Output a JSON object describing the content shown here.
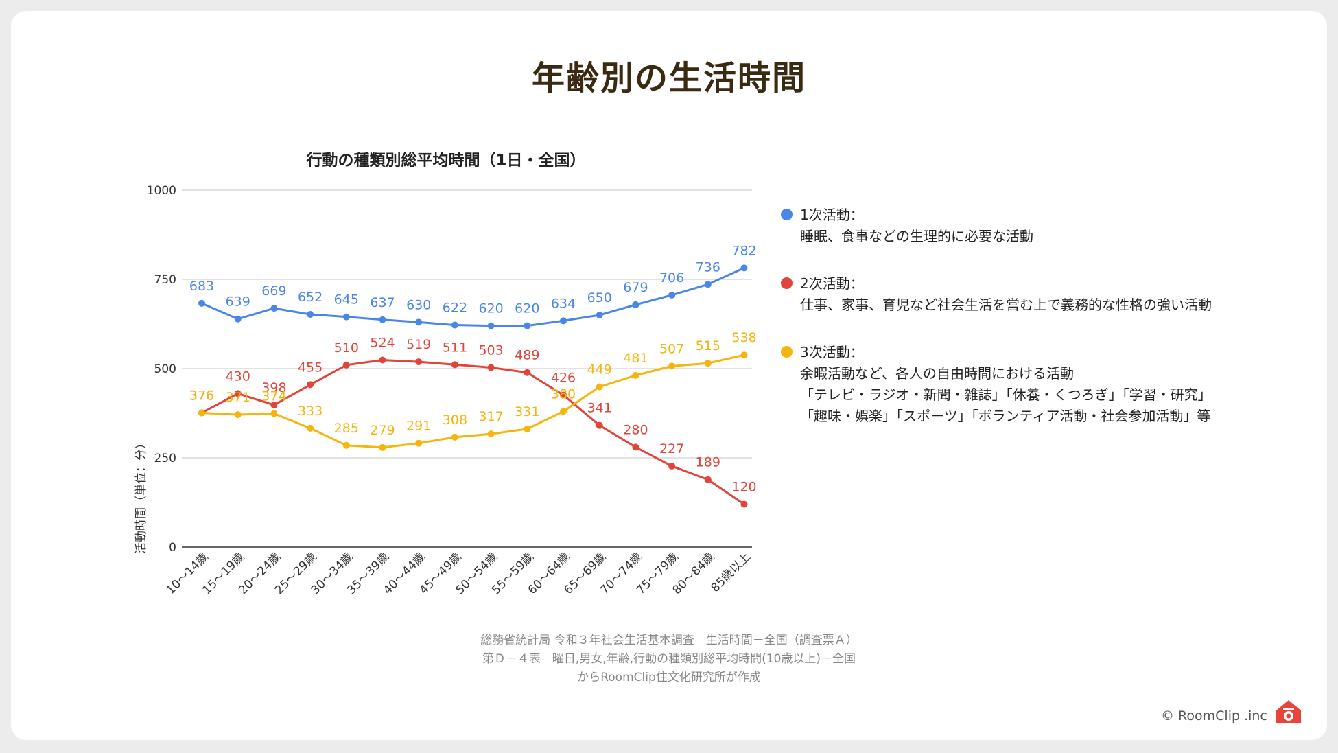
{
  "page": {
    "title": "年齢別の生活時間"
  },
  "chart_data": {
    "type": "line",
    "title": "行動の種類別総平均時間（1日・全国）",
    "ylabel": "活動時間（単位：分）",
    "xlabel": "",
    "ylim": [
      0,
      1000
    ],
    "yticks": [
      0,
      250,
      500,
      750,
      1000
    ],
    "grid": true,
    "categories": [
      "10～14歳",
      "15～19歳",
      "20～24歳",
      "25～29歳",
      "30～34歳",
      "35～39歳",
      "40～44歳",
      "45～49歳",
      "50～54歳",
      "55～59歳",
      "60～64歳",
      "65～69歳",
      "70～74歳",
      "75～79歳",
      "80～84歳",
      "85歳以上"
    ],
    "series": [
      {
        "name": "1次活動",
        "color": "#4a86e8",
        "values": [
          683,
          639,
          669,
          652,
          645,
          637,
          630,
          622,
          620,
          620,
          634,
          650,
          679,
          706,
          736,
          782
        ]
      },
      {
        "name": "2次活動",
        "color": "#e0443a",
        "values": [
          376,
          430,
          398,
          455,
          510,
          524,
          519,
          511,
          503,
          489,
          426,
          341,
          280,
          227,
          189,
          120
        ]
      },
      {
        "name": "3次活動",
        "color": "#f4b50c",
        "values": [
          376,
          371,
          374,
          333,
          285,
          279,
          291,
          308,
          317,
          331,
          380,
          449,
          481,
          507,
          515,
          538
        ]
      }
    ]
  },
  "legend": [
    {
      "color": "#4a86e8",
      "head": "1次活動：",
      "lines": [
        "睡眠、食事などの生理的に必要な活動"
      ]
    },
    {
      "color": "#e0443a",
      "head": "2次活動：",
      "lines": [
        "仕事、家事、育児など社会生活を営む上で義務的な性格の強い活動"
      ]
    },
    {
      "color": "#f4b50c",
      "head": "3次活動：",
      "lines": [
        "余暇活動など、各人の自由時間における活動",
        "「テレビ・ラジオ・新聞・雑誌」「休養・くつろぎ」「学習・研究」",
        "「趣味・娯楽」「スポーツ」「ボランティア活動・社会参加活動」等"
      ]
    }
  ],
  "source": {
    "line1": "総務省統計局 令和３年社会生活基本調査　生活時間－全国（調査票Ａ）",
    "line2": "第Ｄ－４表　曜日,男女,年齢,行動の種類別総平均時間(10歳以上)－全国",
    "line3": "からRoomClip住文化研究所が作成"
  },
  "credit": "© RoomClip .inc",
  "icons": {
    "logo": "house-camera-icon"
  }
}
